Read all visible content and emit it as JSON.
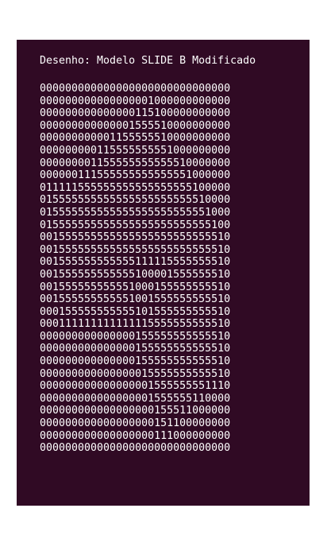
{
  "terminal": {
    "title": "Desenho: Modelo SLIDE B Modificado",
    "background_color": "#300a24",
    "text_color": "#ffffff",
    "rows": [
      "000000000000000000000000000000",
      "000000000000000001000000000000",
      "000000000000000115100000000000",
      "000000000000001555510000000000",
      "000000000001155555510000000000",
      "000000000115555555551000000000",
      "000000001155555555555510000000",
      "000000111555555555555551000000",
      "011111555555555555555555100000",
      "015555555555555555555555510000",
      "015555555555555555555555551000",
      "015555555555555555555555555100",
      "001555555555555555555555555510",
      "001555555555555555555555555510",
      "001555555555555111115555555510",
      "001555555555555100001555555510",
      "001555555555551000155555555510",
      "001555555555551001555555555510",
      "000155555555555101555555555510",
      "000111111111111115555555555510",
      "000000000000000155555555555510",
      "000000000000000155555555555510",
      "000000000000000155555555555510",
      "000000000000000015555555555510",
      "000000000000000001555555551110",
      "000000000000000001555555110000",
      "000000000000000000155511000000",
      "000000000000000000151100000000",
      "000000000000000000111000000000",
      "000000000000000000000000000000"
    ]
  }
}
